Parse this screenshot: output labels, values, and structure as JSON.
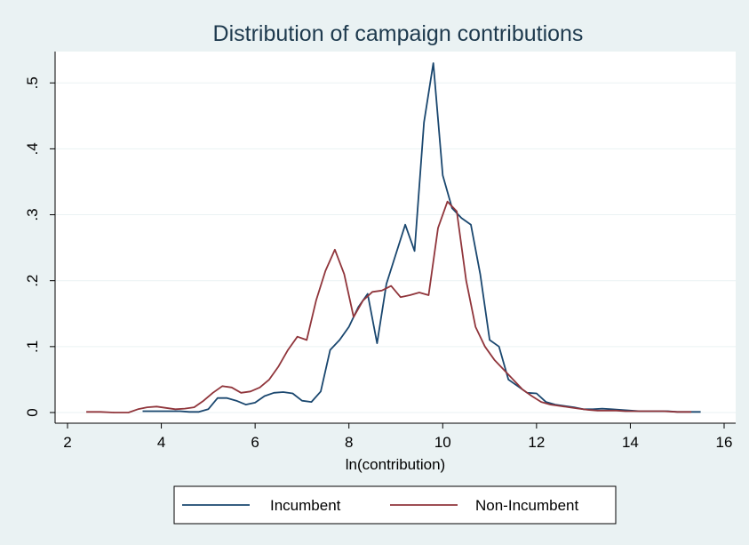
{
  "chart_data": {
    "type": "line",
    "title": "Distribution of campaign contributions",
    "xlabel": "ln(contribution)",
    "ylabel": "",
    "xlim": [
      2,
      16
    ],
    "ylim": [
      0,
      0.53
    ],
    "xticks": [
      2,
      4,
      6,
      8,
      10,
      12,
      14,
      16
    ],
    "xtick_labels": [
      "2",
      "4",
      "6",
      "8",
      "10",
      "12",
      "14",
      "16"
    ],
    "yticks": [
      0,
      0.1,
      0.2,
      0.3,
      0.4,
      0.5
    ],
    "ytick_labels": [
      "0",
      ".1",
      ".2",
      ".3",
      ".4",
      ".5"
    ],
    "grid": true,
    "legend_position": "bottom",
    "colors": {
      "background": "#eaf2f3",
      "plot_background": "#ffffff",
      "title": "#1e3a4e",
      "grid": "#eaf2f3",
      "axis": "#000000"
    },
    "series": [
      {
        "name": "Incumbent",
        "color": "#1a476f",
        "x": [
          3.6,
          3.8,
          4.0,
          4.2,
          4.4,
          4.6,
          4.8,
          5.0,
          5.2,
          5.4,
          5.6,
          5.8,
          6.0,
          6.2,
          6.4,
          6.6,
          6.8,
          7.0,
          7.2,
          7.4,
          7.6,
          7.8,
          8.0,
          8.2,
          8.4,
          8.6,
          8.8,
          9.0,
          9.2,
          9.4,
          9.6,
          9.8,
          10.0,
          10.2,
          10.4,
          10.6,
          10.8,
          11.0,
          11.2,
          11.4,
          11.6,
          11.8,
          12.0,
          12.2,
          12.4,
          12.6,
          12.8,
          13.0,
          13.2,
          13.4,
          13.6,
          13.8,
          14.0,
          14.2,
          14.4,
          14.6,
          14.8,
          15.0,
          15.2,
          15.5
        ],
        "y": [
          0.002,
          0.002,
          0.002,
          0.002,
          0.002,
          0.001,
          0.001,
          0.005,
          0.022,
          0.022,
          0.018,
          0.012,
          0.015,
          0.025,
          0.03,
          0.031,
          0.029,
          0.018,
          0.016,
          0.032,
          0.095,
          0.11,
          0.13,
          0.16,
          0.18,
          0.105,
          0.195,
          0.24,
          0.285,
          0.245,
          0.44,
          0.53,
          0.36,
          0.31,
          0.295,
          0.285,
          0.21,
          0.11,
          0.1,
          0.05,
          0.04,
          0.03,
          0.029,
          0.016,
          0.012,
          0.01,
          0.008,
          0.005,
          0.005,
          0.006,
          0.005,
          0.004,
          0.003,
          0.002,
          0.002,
          0.002,
          0.002,
          0.001,
          0.001,
          0.001
        ]
      },
      {
        "name": "Non-Incumbent",
        "color": "#90353b",
        "x": [
          2.4,
          2.7,
          3.0,
          3.3,
          3.5,
          3.7,
          3.9,
          4.1,
          4.3,
          4.5,
          4.7,
          4.9,
          5.1,
          5.3,
          5.5,
          5.7,
          5.9,
          6.1,
          6.3,
          6.5,
          6.7,
          6.9,
          7.1,
          7.3,
          7.5,
          7.7,
          7.9,
          8.1,
          8.3,
          8.5,
          8.7,
          8.9,
          9.1,
          9.3,
          9.5,
          9.7,
          9.9,
          10.1,
          10.3,
          10.5,
          10.7,
          10.9,
          11.1,
          11.3,
          11.5,
          11.7,
          11.9,
          12.1,
          12.3,
          12.5,
          12.7,
          12.9,
          13.1,
          13.3,
          13.5,
          13.7,
          13.9,
          14.1,
          14.3,
          14.5,
          14.7,
          15.0,
          15.3
        ],
        "y": [
          0.001,
          0.001,
          0.0,
          0.0,
          0.005,
          0.008,
          0.009,
          0.007,
          0.005,
          0.006,
          0.008,
          0.018,
          0.03,
          0.04,
          0.038,
          0.03,
          0.032,
          0.038,
          0.05,
          0.07,
          0.095,
          0.115,
          0.11,
          0.17,
          0.215,
          0.247,
          0.21,
          0.145,
          0.17,
          0.183,
          0.185,
          0.192,
          0.175,
          0.178,
          0.182,
          0.178,
          0.28,
          0.32,
          0.305,
          0.2,
          0.13,
          0.1,
          0.08,
          0.065,
          0.05,
          0.035,
          0.025,
          0.016,
          0.012,
          0.01,
          0.008,
          0.006,
          0.004,
          0.003,
          0.003,
          0.003,
          0.002,
          0.002,
          0.002,
          0.002,
          0.002,
          0.001,
          0.001
        ]
      }
    ]
  }
}
